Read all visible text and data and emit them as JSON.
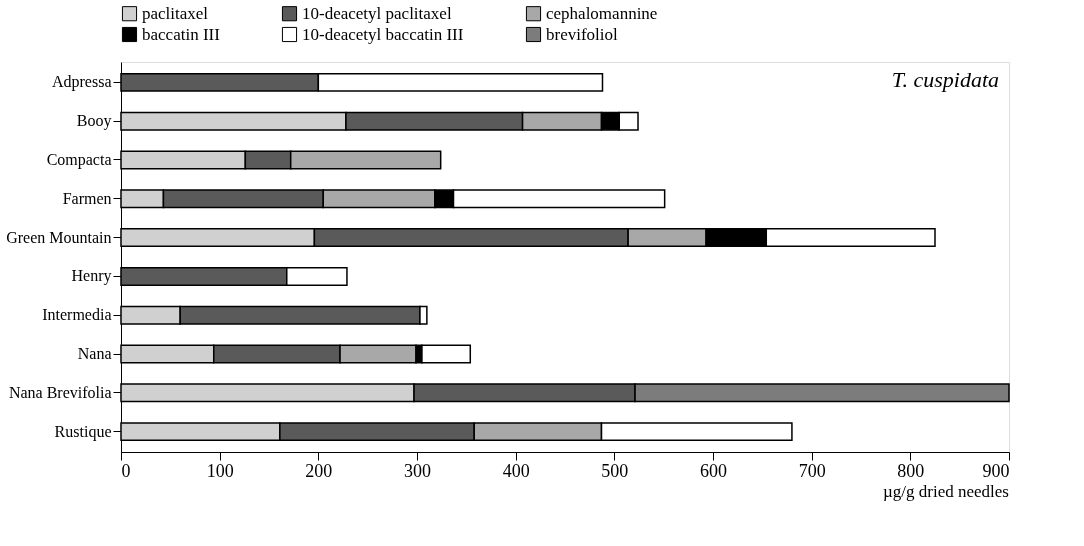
{
  "chart_data": {
    "type": "bar",
    "orientation": "horizontal",
    "stacked": true,
    "xlabel": "µg/g dried needles",
    "legend": "top",
    "grid": false,
    "annotations": [
      "T. cuspidata"
    ],
    "categories": [
      "Adpressa",
      "Booy",
      "Compacta",
      "Farmen",
      "Green Mountain",
      "Henry",
      "Intermedia",
      "Nana",
      "Nana Brevifolia",
      "Rustique"
    ],
    "xlim": [
      0,
      900
    ],
    "xticks": [
      0,
      100,
      200,
      300,
      400,
      500,
      600,
      700,
      800,
      900
    ],
    "series": [
      {
        "name": "paclitaxel",
        "color": "#d0d0d0",
        "values": [
          null,
          228,
          126,
          43,
          196,
          null,
          60,
          94,
          297,
          161
        ]
      },
      {
        "name": "10-deacetyl paclitaxel",
        "color": "#5a5a5a",
        "values": [
          200,
          179,
          46,
          162,
          318,
          168,
          243,
          128,
          224,
          197
        ]
      },
      {
        "name": "cephalomannine",
        "color": "#a8a8a8",
        "values": [
          null,
          80,
          152,
          113,
          79,
          null,
          null,
          77,
          null,
          129
        ]
      },
      {
        "name": "baccatin III",
        "color": "#000000",
        "values": [
          null,
          18,
          null,
          19,
          61,
          null,
          null,
          6,
          null,
          null
        ]
      },
      {
        "name": "10-deacetyl baccatin III",
        "color": "#ffffff",
        "values": [
          288,
          19,
          null,
          214,
          171,
          61,
          7,
          49,
          null,
          193
        ]
      },
      {
        "name": "brevifoliol",
        "color": "#7c7c7c",
        "values": [
          null,
          null,
          null,
          null,
          null,
          null,
          null,
          null,
          379,
          null
        ]
      }
    ]
  }
}
